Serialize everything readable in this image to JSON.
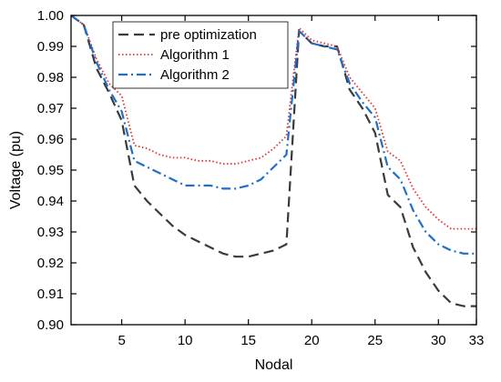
{
  "chart_data": {
    "type": "line",
    "xlabel": "Nodal",
    "ylabel": "Voltage (pu)",
    "xlim": [
      1,
      33
    ],
    "ylim": [
      0.9,
      1.0
    ],
    "xticks": [
      5,
      10,
      15,
      20,
      25,
      30,
      33
    ],
    "yticks": [
      0.9,
      0.91,
      0.92,
      0.93,
      0.94,
      0.95,
      0.96,
      0.97,
      0.98,
      0.99,
      1.0
    ],
    "ytick_labels": [
      "0.90",
      "0.91",
      "0.92",
      "0.93",
      "0.94",
      "0.95",
      "0.96",
      "0.97",
      "0.98",
      "0.99",
      "1.00"
    ],
    "legend_position": "top-left",
    "grid": false,
    "x": [
      1,
      2,
      3,
      4,
      5,
      6,
      7,
      8,
      9,
      10,
      11,
      12,
      13,
      14,
      15,
      16,
      17,
      18,
      19,
      20,
      21,
      22,
      23,
      24,
      25,
      26,
      27,
      28,
      29,
      30,
      31,
      32,
      33
    ],
    "series": [
      {
        "name": "pre optimization",
        "color": "#3a3a3a",
        "style": "dashed",
        "values": [
          1.0,
          0.997,
          0.983,
          0.975,
          0.966,
          0.945,
          0.94,
          0.936,
          0.932,
          0.929,
          0.927,
          0.925,
          0.923,
          0.922,
          0.922,
          0.923,
          0.924,
          0.926,
          0.995,
          0.991,
          0.99,
          0.99,
          0.976,
          0.97,
          0.962,
          0.942,
          0.938,
          0.925,
          0.917,
          0.911,
          0.907,
          0.906,
          0.906
        ]
      },
      {
        "name": "Algorithm 1",
        "color": "#e8302a",
        "style": "dotted",
        "values": [
          1.0,
          0.997,
          0.986,
          0.978,
          0.974,
          0.958,
          0.957,
          0.955,
          0.954,
          0.954,
          0.953,
          0.953,
          0.952,
          0.952,
          0.953,
          0.954,
          0.957,
          0.961,
          0.996,
          0.992,
          0.991,
          0.99,
          0.98,
          0.975,
          0.97,
          0.956,
          0.953,
          0.944,
          0.938,
          0.934,
          0.931,
          0.931,
          0.931
        ]
      },
      {
        "name": "Algorithm 2",
        "color": "#1f6fc9",
        "style": "dashdot",
        "values": [
          1.0,
          0.997,
          0.985,
          0.976,
          0.969,
          0.953,
          0.951,
          0.949,
          0.947,
          0.945,
          0.945,
          0.945,
          0.944,
          0.944,
          0.945,
          0.947,
          0.951,
          0.955,
          0.995,
          0.991,
          0.99,
          0.989,
          0.978,
          0.972,
          0.967,
          0.951,
          0.947,
          0.937,
          0.93,
          0.926,
          0.924,
          0.923,
          0.923
        ]
      }
    ]
  }
}
